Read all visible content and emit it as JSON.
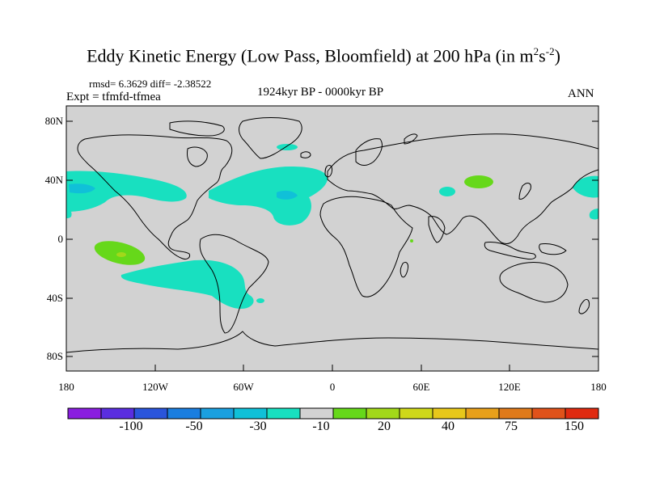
{
  "title": {
    "main": "Eddy Kinetic Energy (Low Pass, Bloomfield) at 200 hPa (in m",
    "sup1": "2",
    "mid": "s",
    "sup2": "-2",
    "end": ")"
  },
  "stats": "rmsd= 6.3629 diff= -2.38522",
  "experiment": "Expt = tfmfd-tfmea",
  "period": "1924kyr BP - 0000kyr BP",
  "season": "ANN",
  "axes": {
    "lat_labels": [
      "80N",
      "40N",
      "0",
      "40S",
      "80S"
    ],
    "lon_labels": [
      "180",
      "120W",
      "60W",
      "0",
      "60E",
      "120E",
      "180"
    ]
  },
  "colorbar": {
    "colors": [
      "#8a1ee0",
      "#5a2ee0",
      "#2a55dc",
      "#1a7ee0",
      "#1aa0e0",
      "#10c0d8",
      "#18e0c0",
      "#d2d2d2",
      "#66d81a",
      "#a2d81a",
      "#cfd81a",
      "#e8c81a",
      "#e8a01a",
      "#e07a1a",
      "#e0521a",
      "#e02a10"
    ],
    "labels": [
      "-100",
      "-50",
      "-30",
      "-10",
      "20",
      "40",
      "75",
      "150"
    ]
  },
  "colors": {
    "background": "#d2d2d2",
    "light_teal": "#18e0c0",
    "teal": "#10c0d8",
    "green": "#66d81a",
    "yellow_green": "#a2d81a"
  }
}
